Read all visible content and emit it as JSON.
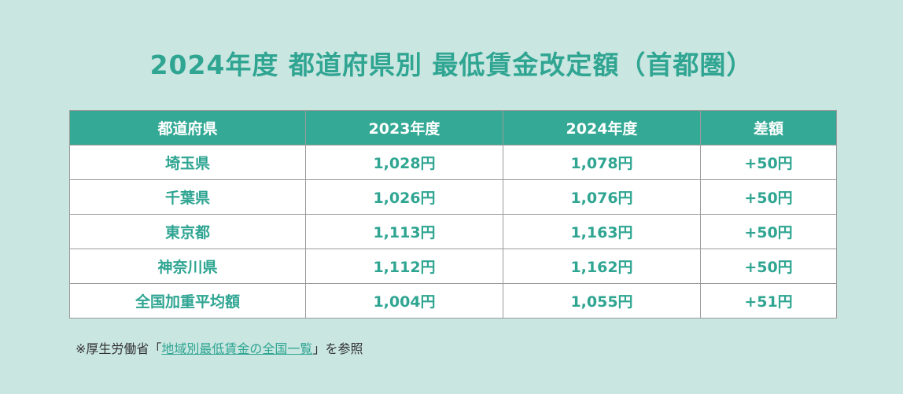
{
  "title": "2024年度 都道府県別 最低賃金改定額（首都圏）",
  "table": {
    "headers": [
      "都道府県",
      "2023年度",
      "2024年度",
      "差額"
    ],
    "rows": [
      [
        "埼玉県",
        "1,028円",
        "1,078円",
        "+50円"
      ],
      [
        "千葉県",
        "1,026円",
        "1,076円",
        "+50円"
      ],
      [
        "東京都",
        "1,113円",
        "1,163円",
        "+50円"
      ],
      [
        "神奈川県",
        "1,112円",
        "1,162円",
        "+50円"
      ],
      [
        "全国加重平均額",
        "1,004円",
        "1,055円",
        "+51円"
      ]
    ]
  },
  "footnote": {
    "prefix": "※厚生労働省「",
    "link": "地域別最低賃金の全国一覧",
    "suffix": "」を参照"
  },
  "colors": {
    "background": "#c9e6e1",
    "accent": "#2fa592",
    "header_bg": "#34a995"
  }
}
